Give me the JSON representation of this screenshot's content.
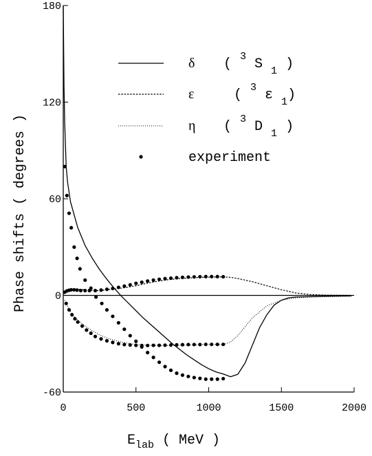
{
  "chart_data": {
    "type": "line",
    "xlabel": {
      "main": "E",
      "sub": "lab",
      "rest": " ( MeV )"
    },
    "ylabel": "Phase shifts ( degrees )",
    "xlim": [
      0,
      2000
    ],
    "ylim": [
      -60,
      180
    ],
    "xticks": [
      "0",
      "500",
      "1000",
      "1500",
      "2000"
    ],
    "yticks": [
      "180",
      "120",
      "60",
      "0",
      "-60"
    ],
    "xtick_values": [
      0,
      500,
      1000,
      1500,
      2000
    ],
    "ytick_values": [
      180,
      120,
      60,
      0,
      -60
    ],
    "zero_line": true,
    "legend": {
      "position": "top-right",
      "entries": [
        {
          "symbol": "δ",
          "paren": "( ",
          "sup": "3",
          "base": " S ",
          "sub": "1",
          "close": " )"
        },
        {
          "symbol": "ε",
          "paren": "( ",
          "sup": "3",
          "base": " ε ",
          "sub": "1",
          "close": ")"
        },
        {
          "symbol": "η",
          "paren": "( ",
          "sup": "3",
          "base": " D ",
          "sub": "1",
          "close": " )"
        },
        {
          "symbol": "",
          "label": "experiment"
        }
      ]
    },
    "series": [
      {
        "style": "solid",
        "x": [
          0,
          5,
          10,
          20,
          30,
          50,
          75,
          100,
          150,
          200,
          250,
          300,
          350,
          400,
          450,
          500,
          550,
          600,
          650,
          700,
          750,
          800,
          850,
          900,
          950,
          1000,
          1050,
          1100,
          1150,
          1200,
          1250,
          1300,
          1350,
          1400,
          1450,
          1500,
          1550,
          1600,
          1700,
          1800,
          1900,
          1980
        ],
        "y": [
          180,
          130,
          107,
          80,
          70,
          58,
          50,
          42,
          31,
          23,
          16,
          10,
          4.5,
          -0.5,
          -5,
          -9.5,
          -14,
          -18,
          -22,
          -26,
          -30,
          -33.5,
          -37,
          -40,
          -43,
          -45.5,
          -47.5,
          -48.8,
          -50.5,
          -49,
          -42,
          -31,
          -20,
          -12,
          -6,
          -3,
          -1.5,
          -1,
          -0.8,
          -0.5,
          -0.4,
          -0.3
        ]
      },
      {
        "style": "dashed",
        "x": [
          10,
          30,
          60,
          100,
          150,
          200,
          250,
          300,
          400,
          500,
          600,
          700,
          800,
          900,
          1000,
          1100,
          1150,
          1200,
          1300,
          1400,
          1500,
          1600,
          1700,
          1800,
          1900,
          1980
        ],
        "y": [
          2,
          3,
          3.5,
          3.8,
          3.5,
          3,
          3,
          3.5,
          4.5,
          6,
          8,
          9.5,
          10.5,
          11,
          11.3,
          11.5,
          11.2,
          10.5,
          8.5,
          6,
          3.5,
          1.5,
          0.5,
          0.2,
          0.1,
          0
        ]
      },
      {
        "style": "dotted",
        "x": [
          10,
          30,
          50,
          75,
          100,
          150,
          200,
          250,
          300,
          400,
          500,
          600,
          700,
          800,
          900,
          1000,
          1100,
          1150,
          1200,
          1300,
          1400,
          1500,
          1600,
          1700,
          1800,
          1900,
          1980
        ],
        "y": [
          -3,
          -7,
          -10,
          -13,
          -15.5,
          -19,
          -22,
          -24.5,
          -26.5,
          -29,
          -30.5,
          -31,
          -31.2,
          -31,
          -30.8,
          -30.5,
          -30.5,
          -29,
          -25,
          -14,
          -6.5,
          -3,
          -1.5,
          -1,
          -0.8,
          -0.6,
          -0.5
        ]
      }
    ],
    "experiment": {
      "x": [
        10,
        25,
        40,
        55,
        75,
        95,
        115,
        150,
        190,
        225,
        265,
        300,
        340,
        380,
        420,
        460,
        500,
        540,
        580,
        620,
        660,
        700,
        740,
        780,
        820,
        860,
        900,
        940,
        980,
        1020,
        1060,
        1100,
        10,
        25,
        40,
        55,
        75,
        95,
        120,
        150,
        180,
        220,
        260,
        300,
        340,
        380,
        420,
        460,
        500,
        540,
        580,
        620,
        660,
        700,
        740,
        780,
        820,
        860,
        900,
        940,
        980,
        1020,
        1060,
        1100,
        20,
        40,
        60,
        80,
        100,
        130,
        160,
        190,
        220,
        260,
        300,
        340,
        380,
        420,
        460,
        500,
        540,
        580,
        620,
        660,
        700,
        740,
        780,
        820,
        860,
        900,
        940,
        980,
        1020,
        1060,
        1100
      ],
      "y": [
        80,
        62,
        51,
        42,
        30,
        23,
        16.5,
        9.5,
        4.5,
        -1,
        -5,
        -9,
        -13,
        -17,
        -21,
        -25,
        -28.5,
        -32,
        -35.5,
        -38.5,
        -41.5,
        -44.2,
        -46.5,
        -48.3,
        -49.5,
        -50.3,
        -51,
        -51.5,
        -52,
        -52,
        -52,
        -51.7,
        2,
        2.8,
        3.2,
        3.5,
        3.5,
        3.3,
        3,
        3,
        3,
        3,
        3.3,
        3.8,
        4.3,
        5,
        5.8,
        6.6,
        7.5,
        8.2,
        8.9,
        9.5,
        10,
        10.4,
        10.7,
        11,
        11.2,
        11.4,
        11.5,
        11.6,
        11.7,
        11.7,
        11.7,
        11.6,
        -5,
        -9,
        -12,
        -14.5,
        -16.5,
        -19,
        -21.5,
        -23.5,
        -25.5,
        -27,
        -28.2,
        -29.2,
        -30,
        -30.5,
        -30.8,
        -31,
        -31.1,
        -31.1,
        -31,
        -31,
        -30.9,
        -30.8,
        -30.7,
        -30.6,
        -30.5,
        -30.5,
        -30.5,
        -30.4,
        -30.4,
        -30.4,
        -30.4
      ]
    }
  }
}
